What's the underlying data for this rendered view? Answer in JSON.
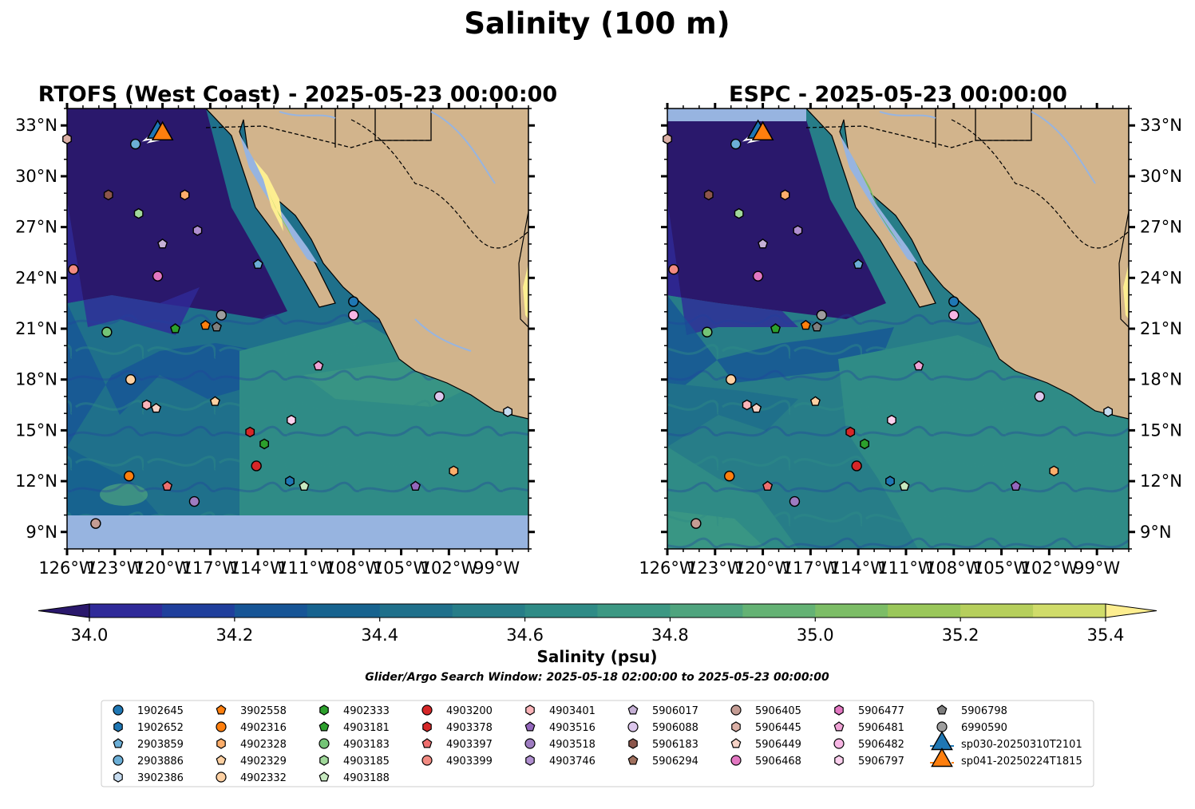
{
  "figure": {
    "title": "Salinity (100 m)",
    "search_window": "Glider/Argo Search Window: 2025-05-18 02:00:00 to 2025-05-23 00:00:00"
  },
  "panels": [
    {
      "title": "RTOFS (West Coast) - 2025-05-23 00:00:00",
      "model": "RTOFS"
    },
    {
      "title": "ESPC - 2025-05-23 00:00:00",
      "model": "ESPC"
    }
  ],
  "colorbar": {
    "label": "Salinity (psu)",
    "min": 34.0,
    "max": 35.4,
    "step": 0.1,
    "ticks": [
      "34.0",
      "34.2",
      "34.4",
      "34.6",
      "34.8",
      "35.0",
      "35.2",
      "35.4"
    ],
    "extend": "both",
    "colormap": "haline",
    "colors": [
      "#2a186c",
      "#2f2a99",
      "#1f3f9c",
      "#175596",
      "#17638f",
      "#1f708b",
      "#277d88",
      "#2f8b86",
      "#3c9883",
      "#4fa47e",
      "#64b274",
      "#7cbd66",
      "#9ac75a",
      "#b6cf5c",
      "#d0dc6a",
      "#fdee90"
    ]
  },
  "map": {
    "lon_range": [
      -126,
      -97
    ],
    "lat_range": [
      8,
      34
    ],
    "xticks": [
      -126,
      -123,
      -120,
      -117,
      -114,
      -111,
      -108,
      -105,
      -102,
      -99
    ],
    "xtick_labels": [
      "126°W",
      "123°W",
      "120°W",
      "117°W",
      "114°W",
      "111°W",
      "108°W",
      "105°W",
      "102°W",
      "99°W"
    ],
    "yticks": [
      9,
      12,
      15,
      18,
      21,
      24,
      27,
      30,
      33
    ],
    "ytick_labels": [
      "9°N",
      "12°N",
      "15°N",
      "18°N",
      "21°N",
      "24°N",
      "27°N",
      "30°N",
      "33°N"
    ],
    "land_color": "#d2b48c",
    "nodata_color": "#97b4e0"
  },
  "chart_data": {
    "type": "scatter",
    "title": "Salinity (100 m)",
    "xlabel": "",
    "ylabel": "",
    "xlim": [
      -126,
      -97
    ],
    "ylim": [
      8,
      34
    ],
    "legend_position": "bottom",
    "series": [
      {
        "name": "1902645",
        "marker": "circle",
        "color": "#1f77b4",
        "lon": -108.0,
        "lat": 22.6
      },
      {
        "name": "1902652",
        "marker": "hexagon",
        "color": "#1f77b4",
        "lon": null,
        "lat": null
      },
      {
        "name": "2903859",
        "marker": "pentagon",
        "color": "#6baed6",
        "lon": -114.0,
        "lat": 24.8
      },
      {
        "name": "2903886",
        "marker": "circle",
        "color": "#6baed6",
        "lon": -121.7,
        "lat": 31.9
      },
      {
        "name": "3902386",
        "marker": "hexagon",
        "color": "#c6dbef",
        "lon": -98.3,
        "lat": 16.1
      },
      {
        "name": "3902558",
        "marker": "pentagon",
        "color": "#ff7f0e",
        "lon": -117.3,
        "lat": 21.2
      },
      {
        "name": "4902316",
        "marker": "circle",
        "color": "#ff7f0e",
        "lon": -122.1,
        "lat": 12.3
      },
      {
        "name": "4902328",
        "marker": "hexagon",
        "color": "#fdae6b",
        "lon": -118.6,
        "lat": 28.9
      },
      {
        "name": "4902329",
        "marker": "pentagon",
        "color": "#fdd0a2",
        "lon": -116.7,
        "lat": 16.7
      },
      {
        "name": "4902332",
        "marker": "circle",
        "color": "#fdd0a2",
        "lon": -122.0,
        "lat": 18.0
      },
      {
        "name": "4902333",
        "marker": "hexagon",
        "color": "#2ca02c",
        "lon": -113.6,
        "lat": 14.2
      },
      {
        "name": "4903181",
        "marker": "pentagon",
        "color": "#2ca02c",
        "lon": -119.2,
        "lat": 21.0
      },
      {
        "name": "4903183",
        "marker": "circle",
        "color": "#74c476",
        "lon": -123.5,
        "lat": 20.8
      },
      {
        "name": "4903185",
        "marker": "hexagon",
        "color": "#a1d99b",
        "lon": -121.5,
        "lat": 27.8
      },
      {
        "name": "4903188",
        "marker": "pentagon",
        "color": "#c7e9c0",
        "lon": -111.1,
        "lat": 11.7
      },
      {
        "name": "4903200",
        "marker": "circle",
        "color": "#d62728",
        "lon": -114.1,
        "lat": 12.9
      },
      {
        "name": "4903378",
        "marker": "hexagon",
        "color": "#d62728",
        "lon": -114.5,
        "lat": 14.9
      },
      {
        "name": "4903397",
        "marker": "pentagon",
        "color": "#ef6f6f",
        "lon": -119.7,
        "lat": 11.7
      },
      {
        "name": "4903399",
        "marker": "circle",
        "color": "#f28b82",
        "lon": -125.6,
        "lat": 24.5
      },
      {
        "name": "4903401",
        "marker": "hexagon",
        "color": "#fbb4b9",
        "lon": -121.0,
        "lat": 16.5
      },
      {
        "name": "4903516",
        "marker": "pentagon",
        "color": "#9467bd",
        "lon": -104.1,
        "lat": 11.7
      },
      {
        "name": "4903518",
        "marker": "circle",
        "color": "#9e7cc1",
        "lon": -118.0,
        "lat": 10.8
      },
      {
        "name": "4903746",
        "marker": "hexagon",
        "color": "#b08fd0",
        "lon": -117.8,
        "lat": 26.8
      },
      {
        "name": "5906017",
        "marker": "pentagon",
        "color": "#c5b0d5",
        "lon": -120.0,
        "lat": 26.0
      },
      {
        "name": "5906088",
        "marker": "circle",
        "color": "#dcc6ec",
        "lon": -102.6,
        "lat": 17.0
      },
      {
        "name": "5906183",
        "marker": "hexagon",
        "color": "#8c564b",
        "lon": -123.4,
        "lat": 28.9
      },
      {
        "name": "5906294",
        "marker": "pentagon",
        "color": "#a0705e",
        "lon": null,
        "lat": null
      },
      {
        "name": "5906405",
        "marker": "circle",
        "color": "#c49c94",
        "lon": -124.2,
        "lat": 9.5
      },
      {
        "name": "5906445",
        "marker": "hexagon",
        "color": "#dbb0a6",
        "lon": -126.0,
        "lat": 32.2
      },
      {
        "name": "5906449",
        "marker": "pentagon",
        "color": "#f7d3c7",
        "lon": -120.4,
        "lat": 16.3
      },
      {
        "name": "5906468",
        "marker": "circle",
        "color": "#e377c2",
        "lon": -120.3,
        "lat": 24.1
      },
      {
        "name": "5906477",
        "marker": "hexagon",
        "color": "#e377c2",
        "lon": null,
        "lat": null
      },
      {
        "name": "5906481",
        "marker": "pentagon",
        "color": "#f0a3d6",
        "lon": -110.2,
        "lat": 18.8
      },
      {
        "name": "5906482",
        "marker": "circle",
        "color": "#f7b6e4",
        "lon": -108.0,
        "lat": 21.8
      },
      {
        "name": "5906797",
        "marker": "hexagon",
        "color": "#fbd0ee",
        "lon": -111.9,
        "lat": 15.6
      },
      {
        "name": "5906798",
        "marker": "pentagon",
        "color": "#7f7f7f",
        "lon": -116.6,
        "lat": 21.1
      },
      {
        "name": "6990590",
        "marker": "circle",
        "color": "#9e9e9e",
        "lon": -116.3,
        "lat": 21.8
      },
      {
        "name": "sp030-20250310T2101",
        "marker": "triangle",
        "color": "#1f77b4",
        "lon": -120.3,
        "lat": 32.7
      },
      {
        "name": "sp041-20250224T1815",
        "marker": "triangle",
        "color": "#ff7f0e",
        "lon": -120.0,
        "lat": 32.6
      }
    ],
    "unplotted_markers": [
      {
        "marker": "hexagon",
        "color": "#1f77b4",
        "lon": -112.0,
        "lat": 12.0
      },
      {
        "marker": "hexagon",
        "color": "#fdae6b",
        "lon": -101.7,
        "lat": 12.6
      }
    ]
  }
}
